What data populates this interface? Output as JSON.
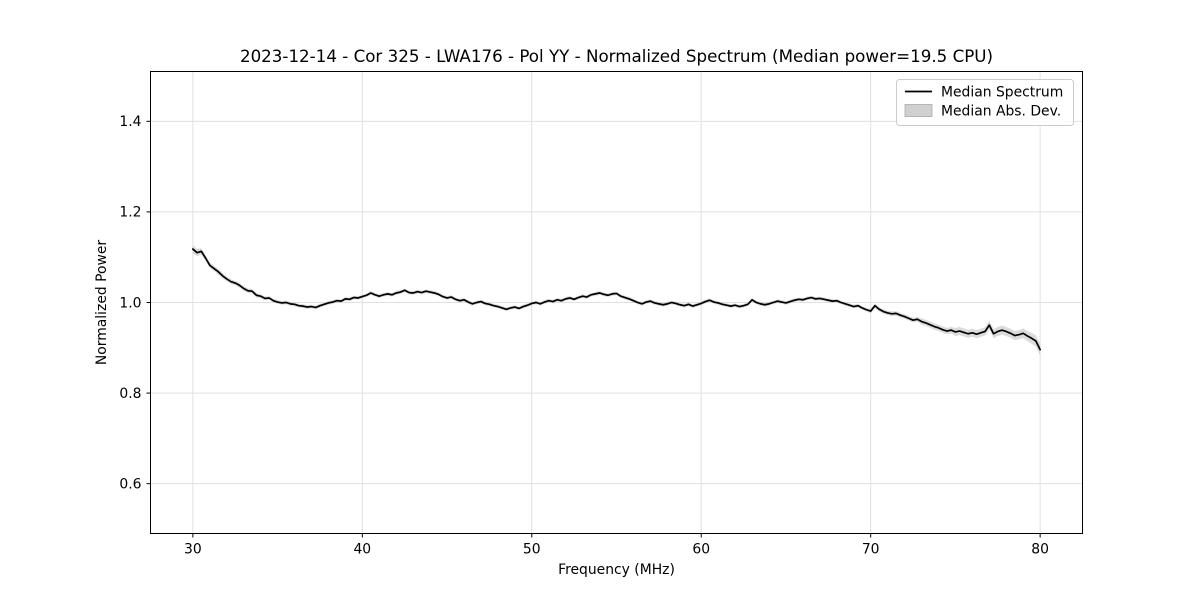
{
  "chart_data": {
    "type": "line",
    "title": "2023-12-14 - Cor 325 - LWA176 - Pol YY - Normalized Spectrum (Median power=19.5 CPU)",
    "xlabel": "Frequency (MHz)",
    "ylabel": "Normalized Power",
    "xlim": [
      27.5,
      82.5
    ],
    "ylim": [
      0.49,
      1.51
    ],
    "grid": true,
    "x_ticks": [
      30,
      40,
      50,
      60,
      70,
      80
    ],
    "x_tick_labels": [
      "30",
      "40",
      "50",
      "60",
      "70",
      "80"
    ],
    "y_ticks": [
      0.6,
      0.8,
      1.0,
      1.2,
      1.4
    ],
    "y_tick_labels": [
      "0.6",
      "0.8",
      "1.0",
      "1.2",
      "1.4"
    ],
    "legend": {
      "position": "upper right",
      "entries": [
        {
          "label": "Median Spectrum",
          "type": "line",
          "color": "#000000"
        },
        {
          "label": "Median Abs. Dev.",
          "type": "patch",
          "color": "#d0d0d0"
        }
      ]
    },
    "colors": {
      "line": "#000000",
      "band": "#bdbdbd",
      "grid": "#e0e0e0",
      "spine": "#000000",
      "background": "#ffffff"
    },
    "series": {
      "name": "Median Spectrum",
      "x_start": 30.0,
      "x_step": 0.25,
      "n_points": 201,
      "median": [
        1.118,
        1.11,
        1.113,
        1.098,
        1.082,
        1.075,
        1.068,
        1.059,
        1.052,
        1.046,
        1.043,
        1.038,
        1.031,
        1.026,
        1.025,
        1.016,
        1.014,
        1.009,
        1.01,
        1.004,
        1.001,
        0.999,
        1.0,
        0.997,
        0.996,
        0.993,
        0.992,
        0.99,
        0.991,
        0.989,
        0.993,
        0.996,
        0.999,
        1.001,
        1.004,
        1.003,
        1.008,
        1.007,
        1.011,
        1.01,
        1.013,
        1.016,
        1.021,
        1.017,
        1.014,
        1.017,
        1.019,
        1.017,
        1.021,
        1.023,
        1.027,
        1.022,
        1.021,
        1.024,
        1.022,
        1.025,
        1.023,
        1.021,
        1.018,
        1.013,
        1.01,
        1.012,
        1.007,
        1.004,
        1.006,
        1.001,
        0.997,
        1.0,
        1.002,
        0.998,
        0.996,
        0.993,
        0.991,
        0.988,
        0.985,
        0.988,
        0.99,
        0.987,
        0.991,
        0.994,
        0.998,
        1.0,
        0.997,
        1.001,
        1.004,
        1.002,
        1.006,
        1.004,
        1.008,
        1.01,
        1.007,
        1.011,
        1.014,
        1.012,
        1.017,
        1.019,
        1.021,
        1.018,
        1.016,
        1.019,
        1.02,
        1.014,
        1.011,
        1.008,
        1.004,
        1.0,
        0.997,
        1.001,
        1.003,
        0.999,
        0.997,
        0.995,
        0.997,
        1.0,
        0.998,
        0.995,
        0.993,
        0.996,
        0.992,
        0.995,
        0.998,
        1.002,
        1.005,
        1.001,
        0.999,
        0.996,
        0.994,
        0.992,
        0.994,
        0.991,
        0.993,
        0.996,
        1.006,
        1.0,
        0.997,
        0.995,
        0.997,
        1.0,
        1.003,
        1.001,
        0.999,
        1.002,
        1.005,
        1.007,
        1.006,
        1.009,
        1.011,
        1.008,
        1.009,
        1.007,
        1.005,
        1.003,
        1.004,
        1.0,
        0.997,
        0.994,
        0.991,
        0.993,
        0.988,
        0.984,
        0.981,
        0.993,
        0.985,
        0.98,
        0.977,
        0.975,
        0.976,
        0.972,
        0.969,
        0.965,
        0.961,
        0.963,
        0.958,
        0.955,
        0.951,
        0.947,
        0.944,
        0.94,
        0.937,
        0.939,
        0.935,
        0.937,
        0.934,
        0.931,
        0.933,
        0.93,
        0.933,
        0.936,
        0.95,
        0.931,
        0.936,
        0.939,
        0.936,
        0.932,
        0.927,
        0.929,
        0.932,
        0.926,
        0.921,
        0.915,
        0.896
      ],
      "mad": [
        0.009,
        0.008,
        0.007,
        0.006,
        0.006,
        0.006,
        0.006,
        0.006,
        0.005,
        0.005,
        0.005,
        0.005,
        0.005,
        0.005,
        0.005,
        0.005,
        0.004,
        0.004,
        0.004,
        0.004,
        0.004,
        0.004,
        0.004,
        0.004,
        0.004,
        0.004,
        0.004,
        0.004,
        0.004,
        0.004,
        0.004,
        0.004,
        0.004,
        0.004,
        0.004,
        0.004,
        0.004,
        0.004,
        0.004,
        0.004,
        0.004,
        0.004,
        0.004,
        0.004,
        0.004,
        0.004,
        0.004,
        0.004,
        0.004,
        0.004,
        0.004,
        0.004,
        0.004,
        0.004,
        0.004,
        0.004,
        0.004,
        0.004,
        0.004,
        0.004,
        0.004,
        0.004,
        0.004,
        0.004,
        0.004,
        0.004,
        0.004,
        0.004,
        0.004,
        0.004,
        0.004,
        0.004,
        0.004,
        0.004,
        0.004,
        0.004,
        0.004,
        0.004,
        0.004,
        0.004,
        0.004,
        0.004,
        0.004,
        0.004,
        0.004,
        0.004,
        0.004,
        0.004,
        0.004,
        0.004,
        0.004,
        0.004,
        0.004,
        0.004,
        0.004,
        0.004,
        0.004,
        0.004,
        0.004,
        0.004,
        0.004,
        0.004,
        0.004,
        0.004,
        0.004,
        0.004,
        0.004,
        0.004,
        0.004,
        0.004,
        0.004,
        0.004,
        0.004,
        0.004,
        0.004,
        0.004,
        0.004,
        0.004,
        0.004,
        0.004,
        0.004,
        0.004,
        0.004,
        0.004,
        0.004,
        0.004,
        0.004,
        0.004,
        0.004,
        0.004,
        0.004,
        0.004,
        0.004,
        0.004,
        0.004,
        0.004,
        0.004,
        0.004,
        0.004,
        0.004,
        0.004,
        0.004,
        0.004,
        0.004,
        0.004,
        0.004,
        0.004,
        0.004,
        0.004,
        0.004,
        0.004,
        0.004,
        0.004,
        0.004,
        0.004,
        0.004,
        0.004,
        0.004,
        0.004,
        0.004,
        0.005,
        0.005,
        0.005,
        0.005,
        0.005,
        0.005,
        0.005,
        0.005,
        0.005,
        0.005,
        0.005,
        0.005,
        0.007,
        0.007,
        0.007,
        0.007,
        0.007,
        0.007,
        0.007,
        0.007,
        0.009,
        0.009,
        0.009,
        0.009,
        0.009,
        0.009,
        0.009,
        0.009,
        0.01,
        0.01,
        0.01,
        0.01,
        0.01,
        0.01,
        0.01,
        0.01,
        0.011,
        0.011,
        0.012,
        0.012,
        0.013
      ]
    }
  }
}
